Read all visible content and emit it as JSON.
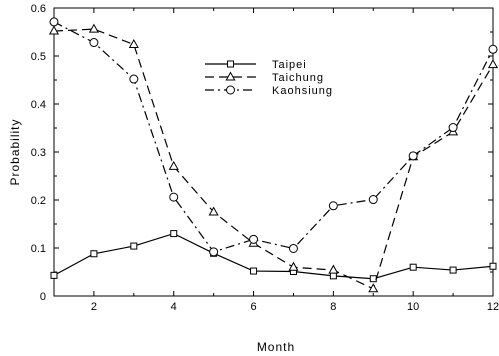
{
  "chart_data": {
    "type": "line",
    "xlabel": "Month",
    "ylabel": "Probability",
    "xlim": [
      1,
      12
    ],
    "ylim": [
      0,
      0.6
    ],
    "x": [
      1,
      2,
      3,
      4,
      5,
      6,
      7,
      8,
      9,
      10,
      11,
      12
    ],
    "x_ticks": [
      2,
      4,
      6,
      8,
      10,
      12
    ],
    "y_ticks": [
      0,
      0.1,
      0.2,
      0.3,
      0.4,
      0.5,
      0.6
    ],
    "y_tick_labels": [
      "0",
      "0.1",
      "0.2",
      "0.3",
      "0.4",
      "0.5",
      "0.6"
    ],
    "grid": false,
    "legend_position": "upper-center",
    "series": [
      {
        "name": "Taipei",
        "line_style": "solid",
        "marker": "square",
        "values": [
          0.043,
          0.088,
          0.104,
          0.13,
          0.089,
          0.052,
          0.051,
          0.042,
          0.036,
          0.06,
          0.054,
          0.062
        ]
      },
      {
        "name": "Taichung",
        "line_style": "dashed",
        "marker": "triangle",
        "values": [
          0.552,
          0.556,
          0.524,
          0.27,
          0.175,
          0.11,
          0.06,
          0.054,
          0.015,
          0.29,
          0.342,
          0.482
        ]
      },
      {
        "name": "Kaohsiung",
        "line_style": "dash-dot",
        "marker": "circle",
        "values": [
          0.571,
          0.528,
          0.452,
          0.206,
          0.092,
          0.118,
          0.099,
          0.188,
          0.201,
          0.292,
          0.351,
          0.514
        ]
      }
    ]
  }
}
